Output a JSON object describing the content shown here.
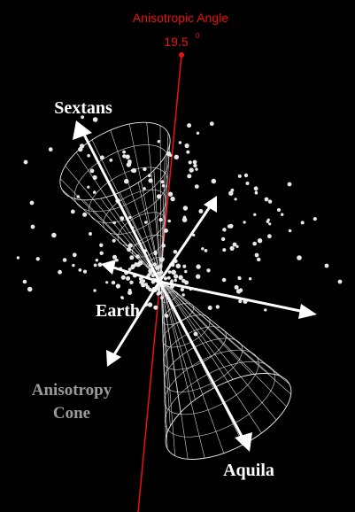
{
  "header": {
    "title": "Anisotropic Angle",
    "angle_value": "19.5",
    "angle_unit": "0"
  },
  "labels": {
    "top_direction": "Sextans",
    "bottom_direction": "Aquila",
    "center": "Earth",
    "cone_line1": "Anisotropy",
    "cone_line2": "Cone"
  },
  "colors": {
    "background": "#000000",
    "axis_line": "#ee1111",
    "arrows": "#ffffff",
    "cone_label": "#9a9a9a"
  }
}
